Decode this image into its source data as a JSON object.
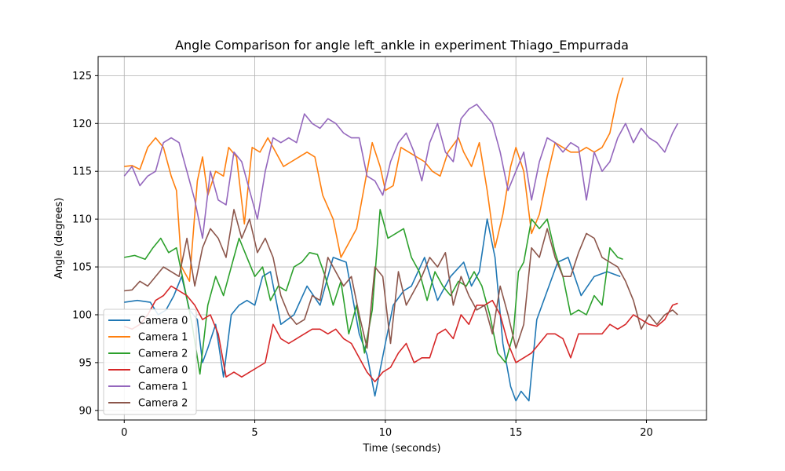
{
  "chart_data": {
    "type": "line",
    "title": "Angle Comparison for angle left_ankle in experiment Thiago_Empurrada",
    "xlabel": "Time (seconds)",
    "ylabel": "Angle (degrees)",
    "xlim": [
      -1.0,
      22.3
    ],
    "ylim": [
      89.0,
      127.0
    ],
    "xticks": [
      0,
      5,
      10,
      15,
      20
    ],
    "yticks": [
      90,
      95,
      100,
      105,
      110,
      115,
      120,
      125
    ],
    "grid": true,
    "legend_position": "lower-left",
    "series": [
      {
        "name": "Camera 0",
        "color": "#1f77b4",
        "x": [
          0,
          0.5,
          1,
          1.3,
          1.6,
          1.9,
          2.2,
          2.5,
          2.8,
          3.0,
          3.2,
          3.5,
          3.8,
          4.1,
          4.4,
          4.7,
          5.0,
          5.3,
          5.6,
          6.0,
          6.5,
          7.0,
          7.5,
          8.0,
          8.5,
          9.0,
          9.3,
          9.6,
          10.0,
          10.3,
          10.7,
          11.0,
          11.5,
          12.0,
          12.5,
          13.0,
          13.3,
          13.6,
          13.9,
          14.2,
          14.5,
          14.8,
          15.0,
          15.2,
          15.5,
          15.8,
          16.2,
          16.6,
          17.0,
          17.5,
          18.0,
          18.5,
          19.0
        ],
        "y": [
          101.3,
          101.5,
          101.3,
          100,
          100.5,
          102,
          104,
          100.5,
          99.5,
          95,
          96.5,
          99,
          93.5,
          100,
          101,
          101.5,
          101,
          104,
          104.5,
          99,
          100,
          103,
          101,
          106,
          105.5,
          98,
          95.8,
          91.5,
          97,
          101,
          102.5,
          103,
          106,
          101.5,
          104,
          105.5,
          103,
          104.5,
          110,
          106,
          97,
          92.5,
          91,
          92,
          91,
          99.5,
          102.5,
          105.5,
          106,
          102,
          104,
          104.5,
          104
        ]
      },
      {
        "name": "Camera 1",
        "color": "#ff7f0e",
        "x": [
          0,
          0.3,
          0.6,
          0.9,
          1.2,
          1.5,
          1.8,
          2.0,
          2.2,
          2.5,
          2.8,
          3.0,
          3.2,
          3.5,
          3.8,
          4.0,
          4.3,
          4.6,
          4.9,
          5.2,
          5.5,
          5.8,
          6.1,
          6.4,
          6.7,
          7.0,
          7.3,
          7.6,
          8.0,
          8.3,
          8.6,
          8.9,
          9.2,
          9.5,
          9.8,
          10.0,
          10.3,
          10.6,
          10.9,
          11.2,
          11.5,
          11.8,
          12.1,
          12.4,
          12.8,
          13.0,
          13.3,
          13.6,
          13.9,
          14.2,
          14.5,
          14.8,
          15.0,
          15.3,
          15.6,
          15.9,
          16.2,
          16.5,
          16.8,
          17.1,
          17.4,
          17.7,
          18.0,
          18.3,
          18.6,
          18.9,
          19.1
        ],
        "y": [
          115.5,
          115.6,
          115.2,
          117.5,
          118.5,
          117.5,
          114.5,
          113,
          105,
          103.5,
          114,
          116.5,
          112.5,
          115,
          114.5,
          117.5,
          116.5,
          109.5,
          117.5,
          117,
          118.5,
          117,
          115.5,
          116,
          116.5,
          117,
          116.5,
          112.5,
          110,
          106,
          107.5,
          109,
          113.5,
          118,
          115.5,
          113,
          113.5,
          117.5,
          117,
          116.5,
          116,
          115,
          114.5,
          117,
          118.5,
          117,
          115.5,
          118,
          113,
          107,
          110.5,
          115.5,
          117.5,
          115,
          108.5,
          110.5,
          114.5,
          118,
          117.5,
          117,
          117,
          117.5,
          117,
          117.5,
          119,
          123,
          124.8
        ]
      },
      {
        "name": "Camera 2",
        "color": "#2ca02c",
        "x": [
          0,
          0.4,
          0.8,
          1.1,
          1.4,
          1.7,
          2.0,
          2.3,
          2.6,
          2.9,
          3.2,
          3.5,
          3.8,
          4.1,
          4.4,
          4.7,
          5.0,
          5.3,
          5.6,
          5.9,
          6.2,
          6.5,
          6.8,
          7.1,
          7.4,
          7.7,
          8.0,
          8.3,
          8.6,
          8.9,
          9.2,
          9.5,
          9.8,
          10.1,
          10.4,
          10.7,
          11.0,
          11.3,
          11.6,
          11.9,
          12.2,
          12.5,
          12.8,
          13.1,
          13.4,
          13.7,
          14.0,
          14.3,
          14.6,
          14.9,
          15.1,
          15.3,
          15.6,
          15.9,
          16.2,
          16.5,
          16.8,
          17.1,
          17.4,
          17.7,
          18.0,
          18.3,
          18.6,
          18.9,
          19.1
        ],
        "y": [
          106,
          106.2,
          105.8,
          107,
          108,
          106.5,
          107,
          103,
          99,
          93.8,
          101,
          104,
          102,
          105,
          108,
          106,
          104,
          105,
          101.5,
          103,
          102.5,
          105,
          105.5,
          106.5,
          106.3,
          104,
          101,
          103.5,
          98,
          101,
          96,
          100.5,
          111,
          108,
          108.5,
          109,
          106,
          104.5,
          101.5,
          104.5,
          103,
          102,
          103.5,
          103,
          104.5,
          103,
          100,
          96,
          95,
          98,
          104.5,
          105.5,
          110,
          109,
          110,
          106.5,
          104,
          100,
          100.5,
          100,
          102,
          101,
          107,
          106,
          105.8
        ]
      },
      {
        "name": "Camera 0",
        "color": "#d62728",
        "x": [
          0,
          0.3,
          0.6,
          0.9,
          1.2,
          1.5,
          1.8,
          2.1,
          2.4,
          2.7,
          3.0,
          3.3,
          3.6,
          3.9,
          4.2,
          4.5,
          4.8,
          5.1,
          5.4,
          5.7,
          6.0,
          6.3,
          6.6,
          6.9,
          7.2,
          7.5,
          7.8,
          8.1,
          8.4,
          8.7,
          9.0,
          9.3,
          9.6,
          9.9,
          10.2,
          10.5,
          10.8,
          11.1,
          11.4,
          11.7,
          12.0,
          12.3,
          12.6,
          12.9,
          13.2,
          13.5,
          13.8,
          14.1,
          14.4,
          14.7,
          15.0,
          15.3,
          15.6,
          15.9,
          16.2,
          16.5,
          16.8,
          17.1,
          17.4,
          17.7,
          18.0,
          18.3,
          18.6,
          18.9,
          19.2,
          19.5,
          19.8,
          20.1,
          20.4,
          20.7,
          21.0,
          21.2
        ],
        "y": [
          98.8,
          98.5,
          99,
          100,
          101.5,
          102,
          103,
          102.5,
          102,
          101,
          99.5,
          100,
          98,
          93.5,
          94,
          93.5,
          94,
          94.5,
          95,
          99,
          97.5,
          97,
          97.5,
          98,
          98.5,
          98.5,
          98,
          98.5,
          97.5,
          97,
          95.5,
          94,
          93,
          94,
          94.5,
          96,
          97,
          95,
          95.5,
          95.5,
          98,
          98.5,
          97.5,
          100,
          99,
          101,
          101,
          101.5,
          100,
          97,
          95,
          95.5,
          96,
          97,
          98,
          98,
          97.5,
          95.5,
          98,
          98,
          98,
          98,
          99,
          98.5,
          99,
          100,
          99.5,
          99,
          98.8,
          99.5,
          101,
          101.2
        ]
      },
      {
        "name": "Camera 1",
        "color": "#9467bd",
        "x": [
          0,
          0.3,
          0.6,
          0.9,
          1.2,
          1.5,
          1.8,
          2.1,
          2.4,
          2.7,
          3.0,
          3.3,
          3.6,
          3.9,
          4.2,
          4.5,
          4.8,
          5.1,
          5.4,
          5.7,
          6.0,
          6.3,
          6.6,
          6.9,
          7.2,
          7.5,
          7.8,
          8.1,
          8.4,
          8.7,
          9.0,
          9.3,
          9.6,
          9.9,
          10.2,
          10.5,
          10.8,
          11.1,
          11.4,
          11.7,
          12.0,
          12.3,
          12.6,
          12.9,
          13.2,
          13.5,
          13.8,
          14.1,
          14.4,
          14.7,
          15.0,
          15.3,
          15.6,
          15.9,
          16.2,
          16.5,
          16.8,
          17.1,
          17.4,
          17.7,
          18.0,
          18.3,
          18.6,
          18.9,
          19.2,
          19.5,
          19.8,
          20.1,
          20.4,
          20.7,
          21.0,
          21.2
        ],
        "y": [
          114.5,
          115.5,
          113.5,
          114.5,
          115,
          118,
          118.5,
          118,
          115,
          112,
          108,
          115,
          112,
          111.5,
          117,
          116,
          113,
          110,
          115,
          118.5,
          118,
          118.5,
          118,
          121,
          120,
          119.5,
          120.5,
          120,
          119,
          118.5,
          118.5,
          114.5,
          114,
          112.5,
          116,
          118,
          119,
          117,
          114,
          118,
          120,
          117,
          116,
          120.5,
          121.5,
          122,
          121,
          120,
          117,
          113,
          115,
          117,
          112,
          116,
          118.5,
          118,
          117,
          118,
          117.5,
          112,
          117,
          115,
          116,
          118.5,
          120,
          118,
          119.5,
          118.5,
          118,
          117,
          119,
          120
        ]
      },
      {
        "name": "Camera 2",
        "color": "#8c564b",
        "x": [
          0,
          0.3,
          0.6,
          0.9,
          1.2,
          1.5,
          1.8,
          2.1,
          2.4,
          2.7,
          3.0,
          3.3,
          3.6,
          3.9,
          4.2,
          4.5,
          4.8,
          5.1,
          5.4,
          5.7,
          6.0,
          6.3,
          6.6,
          6.9,
          7.2,
          7.5,
          7.8,
          8.1,
          8.4,
          8.7,
          9.0,
          9.3,
          9.6,
          9.9,
          10.2,
          10.5,
          10.8,
          11.1,
          11.4,
          11.7,
          12.0,
          12.3,
          12.6,
          12.9,
          13.2,
          13.5,
          13.8,
          14.1,
          14.4,
          14.7,
          15.0,
          15.3,
          15.6,
          15.9,
          16.2,
          16.5,
          16.8,
          17.1,
          17.4,
          17.7,
          18.0,
          18.3,
          18.6,
          18.9,
          19.2,
          19.5,
          19.8,
          20.1,
          20.4,
          20.7,
          21.0,
          21.2
        ],
        "y": [
          102.5,
          102.6,
          103.5,
          103,
          104,
          105,
          104.5,
          104,
          108,
          103,
          107,
          109,
          108,
          106,
          111,
          108,
          110,
          106.5,
          108,
          106,
          102,
          100,
          99,
          99.5,
          102,
          101.5,
          106,
          104.5,
          103,
          104,
          100,
          96.5,
          105,
          104,
          97,
          104.5,
          101,
          102.5,
          104,
          106,
          105,
          106.5,
          101,
          104,
          102,
          100.5,
          101,
          98,
          103,
          100,
          96.5,
          99,
          107,
          106,
          109,
          106,
          104,
          104,
          106.5,
          108.5,
          108,
          106,
          105.5,
          105,
          103.5,
          101.5,
          98.5,
          100,
          99,
          100,
          100.5,
          100
        ]
      }
    ]
  }
}
